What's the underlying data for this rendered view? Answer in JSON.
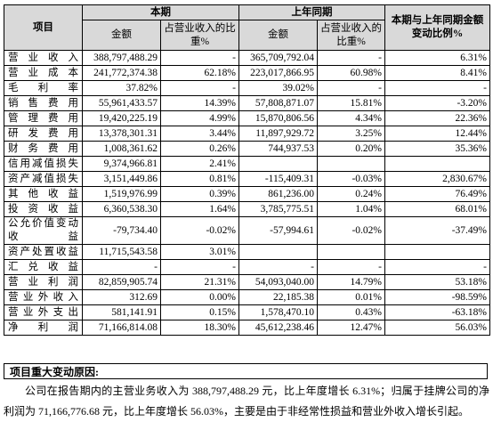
{
  "table": {
    "header": {
      "group": [
        "项目",
        "本期",
        "上年同期",
        "本期与上年同期金额变动比例%"
      ],
      "sub": [
        "金额",
        "占营业收入的比重%",
        "金额",
        "占营业收入的比重%"
      ]
    },
    "rows": [
      [
        "营业收入",
        "388,797,488.29",
        "-",
        "365,709,792.04",
        "-",
        "6.31%"
      ],
      [
        "营业成本",
        "241,772,374.38",
        "62.18%",
        "223,017,866.95",
        "60.98%",
        "8.41%"
      ],
      [
        "毛利率",
        "37.82%",
        "-",
        "39.02%",
        "-",
        "-"
      ],
      [
        "销售费用",
        "55,961,433.57",
        "14.39%",
        "57,808,871.07",
        "15.81%",
        "-3.20%"
      ],
      [
        "管理费用",
        "19,420,225.19",
        "4.99%",
        "15,870,806.56",
        "4.34%",
        "22.36%"
      ],
      [
        "研发费用",
        "13,378,301.31",
        "3.44%",
        "11,897,929.72",
        "3.25%",
        "12.44%"
      ],
      [
        "财务费用",
        "1,008,361.62",
        "0.26%",
        "744,937.53",
        "0.20%",
        "35.36%"
      ],
      [
        "信用减值损失",
        "9,374,966.81",
        "2.41%",
        null,
        null,
        null
      ],
      [
        "资产减值损失",
        "3,151,449.86",
        "0.81%",
        "-115,409.31",
        "-0.03%",
        "2,830.67%"
      ],
      [
        "其他收益",
        "1,519,976.99",
        "0.39%",
        "861,236.00",
        "0.24%",
        "76.49%"
      ],
      [
        "投资收益",
        "6,360,538.30",
        "1.64%",
        "3,785,775.51",
        "1.04%",
        "68.01%"
      ],
      [
        "公允价值变动收益",
        "-79,734.40",
        "-0.02%",
        "-57,994.61",
        "-0.02%",
        "-37.49%"
      ],
      [
        "资产处置收益",
        "11,715,543.58",
        "3.01%",
        null,
        null,
        null
      ],
      [
        "汇兑收益",
        "-",
        "-",
        "-",
        "-",
        "-"
      ],
      [
        "营业利润",
        "82,859,905.74",
        "21.31%",
        "54,093,040.00",
        "14.79%",
        "53.18%"
      ],
      [
        "营业外收入",
        "312.69",
        "0.00%",
        "22,185.38",
        "0.01%",
        "-98.59%"
      ],
      [
        "营业外支出",
        "581,141.91",
        "0.15%",
        "1,578,470.10",
        "0.43%",
        "-63.18%"
      ],
      [
        "净利润",
        "71,166,814.08",
        "18.30%",
        "45,612,238.46",
        "12.47%",
        "56.03%"
      ]
    ]
  },
  "notes": {
    "title": "项目重大变动原因:",
    "text": "公司在报告期内的主营业务收入为 388,797,488.29 元，比上年度增长 6.31%；归属于挂牌公司的净利润为 71,166,776.68 元，比上年度增长 56.03%，主要是由于非经常性损益和营业外收入增长引起。"
  }
}
